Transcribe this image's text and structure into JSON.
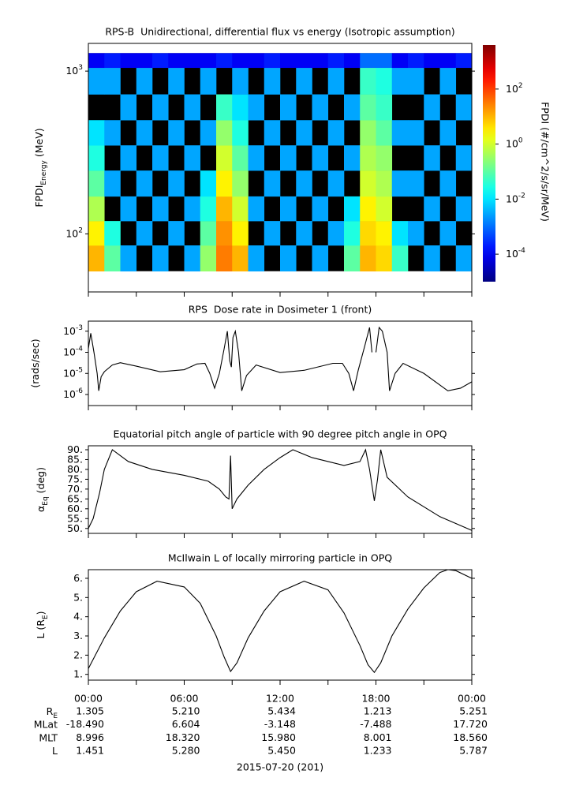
{
  "chart_data": [
    {
      "type": "heatmap",
      "title": "RPS-B  Unidirectional, differential flux vs energy (Isotropic assumption)",
      "ylabel": [
        {
          "text": "FPDI"
        },
        {
          "text": "Energy",
          "sub": true
        },
        {
          "text": " (MeV)"
        }
      ],
      "x_edges": [
        0,
        1,
        2,
        3,
        4,
        5,
        6,
        7,
        8,
        9,
        10,
        11,
        12,
        13,
        14,
        15,
        16,
        17,
        18,
        19,
        20,
        21,
        22,
        23,
        24
      ],
      "y_edges": [
        59,
        85,
        120,
        170,
        245,
        350,
        500,
        720,
        1050,
        1290
      ],
      "z": [
        [
          10,
          0.1,
          0.003,
          null,
          0.003,
          null,
          0.003,
          0.3,
          30,
          10,
          0.003,
          null,
          0.003,
          null,
          0.003,
          null,
          0.1,
          10,
          5,
          0.05,
          null,
          0.003,
          null,
          0.003
        ],
        [
          3,
          0.03,
          null,
          0.003,
          null,
          0.003,
          null,
          0.1,
          20,
          3,
          null,
          0.003,
          null,
          0.003,
          null,
          0.003,
          0.03,
          5,
          3,
          0.01,
          0.003,
          null,
          0.003,
          null
        ],
        [
          0.5,
          null,
          0.003,
          null,
          0.003,
          null,
          0.003,
          0.03,
          10,
          1,
          0.003,
          null,
          0.003,
          null,
          0.003,
          null,
          0.01,
          3,
          1,
          null,
          null,
          0.003,
          null,
          0.003
        ],
        [
          0.1,
          0.003,
          null,
          0.003,
          null,
          0.003,
          null,
          0.01,
          3,
          0.3,
          null,
          0.003,
          null,
          0.003,
          null,
          0.003,
          null,
          1,
          0.5,
          0.003,
          0.003,
          null,
          0.003,
          null
        ],
        [
          0.03,
          null,
          0.003,
          null,
          0.003,
          null,
          0.003,
          null,
          1,
          0.1,
          0.003,
          null,
          0.003,
          null,
          0.003,
          null,
          0.003,
          0.5,
          0.3,
          null,
          null,
          0.003,
          null,
          0.003
        ],
        [
          0.01,
          0.003,
          null,
          0.003,
          null,
          0.003,
          null,
          0.003,
          0.3,
          0.03,
          null,
          0.003,
          null,
          0.003,
          null,
          0.003,
          null,
          0.3,
          0.1,
          0.003,
          0.003,
          null,
          0.003,
          null
        ],
        [
          null,
          null,
          0.003,
          null,
          0.003,
          null,
          0.003,
          null,
          0.05,
          0.01,
          0.003,
          null,
          0.003,
          null,
          0.003,
          null,
          0.003,
          0.1,
          0.05,
          null,
          null,
          0.003,
          null,
          0.003
        ],
        [
          0.003,
          0.003,
          null,
          0.003,
          null,
          0.003,
          null,
          0.003,
          null,
          0.003,
          null,
          0.003,
          null,
          0.003,
          null,
          0.003,
          null,
          0.05,
          0.03,
          0.003,
          0.003,
          null,
          0.003,
          null
        ],
        [
          0.0001,
          0.0002,
          0.0001,
          0.0001,
          0.0002,
          0.0001,
          0.0001,
          0.0001,
          0.0002,
          0.0001,
          0.0001,
          0.0002,
          0.0001,
          0.0001,
          0.0001,
          0.0002,
          0.0001,
          0.001,
          0.001,
          0.0001,
          0.0002,
          0.0001,
          0.0001,
          0.0002
        ]
      ],
      "missing_color": "#000000",
      "xlim": [
        0,
        24
      ],
      "xticks": [
        0,
        3,
        6,
        9,
        12,
        15,
        18,
        21,
        24
      ],
      "ylim": [
        44,
        1480
      ],
      "log_y": true,
      "yticks": [
        {
          "value": 100,
          "label": "10",
          "exponent": "2"
        },
        {
          "value": 1000,
          "label": "10",
          "exponent": "3"
        }
      ],
      "colorbar": {
        "label": "FPDI (#/cm^2/s/sr/MeV)",
        "lim": [
          1e-05,
          4000
        ],
        "log": true,
        "colormap": "jet",
        "ticks": [
          {
            "value": 0.0001,
            "label": "10",
            "exponent": "-4"
          },
          {
            "value": 0.01,
            "label": "10",
            "exponent": "-2"
          },
          {
            "value": 1,
            "label": "10",
            "exponent": "0"
          },
          {
            "value": 100,
            "label": "10",
            "exponent": "2"
          }
        ]
      }
    },
    {
      "type": "line",
      "title": "RPS  Dose rate in Dosimeter 1 (front)",
      "ylabel": [
        {
          "text": "(rads/sec)"
        }
      ],
      "x": [
        0,
        0.15,
        0.35,
        0.55,
        0.65,
        0.8,
        1.0,
        1.5,
        2.0,
        3.0,
        4.5,
        6.0,
        6.8,
        7.3,
        7.6,
        7.9,
        8.2,
        8.5,
        8.7,
        8.85,
        8.95,
        9.05,
        9.2,
        9.4,
        9.6,
        9.9,
        10.5,
        12.0,
        13.5,
        15.3,
        15.9,
        16.3,
        16.6,
        16.9,
        17.3,
        17.6,
        17.75,
        17.9,
        18.0,
        18.2,
        18.4,
        18.7,
        18.85,
        19.2,
        19.7,
        21.0,
        22.5,
        23.3,
        24.0
      ],
      "values": [
        0.00015,
        0.0008,
        0.0001,
        1e-05,
        1.5e-06,
        7e-06,
        1.2e-05,
        2.5e-05,
        3.2e-05,
        2.2e-05,
        1.2e-05,
        1.5e-05,
        2.8e-05,
        3e-05,
        1e-05,
        2e-06,
        1e-05,
        0.00015,
        0.001,
        4e-05,
        2e-05,
        0.0005,
        0.001,
        0.0001,
        1.5e-06,
        8e-06,
        2.5e-05,
        1.1e-05,
        1.4e-05,
        3e-05,
        3e-05,
        1e-05,
        1.5e-06,
        1.5e-05,
        0.0002,
        0.0015,
        0.0001,
        null,
        0.0001,
        0.0015,
        0.001,
        0.0001,
        1.5e-06,
        1e-05,
        3e-05,
        1e-05,
        1.5e-06,
        2e-06,
        4e-06
      ],
      "color": "#000000",
      "xlim": [
        0,
        24
      ],
      "xticks": [
        0,
        3,
        6,
        9,
        12,
        15,
        18,
        21,
        24
      ],
      "ylim": [
        3e-07,
        0.003
      ],
      "log_y": true,
      "yticks": [
        {
          "value": 1e-06,
          "label": "10",
          "exponent": "-6"
        },
        {
          "value": 1e-05,
          "label": "10",
          "exponent": "-5"
        },
        {
          "value": 0.0001,
          "label": "10",
          "exponent": "-4"
        },
        {
          "value": 0.001,
          "label": "10",
          "exponent": "-3"
        }
      ]
    },
    {
      "type": "line",
      "title": "Equatorial pitch angle of particle with 90 degree pitch angle in OPQ",
      "ylabel": [
        {
          "text": "α"
        },
        {
          "text": "Eq",
          "sub": true
        },
        {
          "text": " (deg)"
        }
      ],
      "x": [
        0,
        0.3,
        0.7,
        1.0,
        1.5,
        2.5,
        4,
        6,
        7.5,
        8.2,
        8.6,
        8.8,
        8.9,
        9.0,
        9.3,
        10,
        11,
        12,
        12.8,
        14,
        16,
        17,
        17.35,
        17.6,
        17.9,
        18.1,
        18.3,
        18.7,
        20,
        22,
        24
      ],
      "values": [
        50,
        55,
        68,
        80,
        90,
        84,
        80,
        77,
        74,
        70,
        66,
        65,
        87,
        60,
        65,
        72,
        80,
        86,
        90,
        86,
        82,
        84,
        90,
        80,
        64,
        75,
        90,
        76,
        66,
        56,
        49
      ],
      "color": "#000000",
      "xlim": [
        0,
        24
      ],
      "xticks": [
        0,
        3,
        6,
        9,
        12,
        15,
        18,
        21,
        24
      ],
      "ylim": [
        47.5,
        92
      ],
      "log_y": false,
      "yticks": [
        {
          "value": 50,
          "label": "50."
        },
        {
          "value": 55,
          "label": "55."
        },
        {
          "value": 60,
          "label": "60."
        },
        {
          "value": 65,
          "label": "65."
        },
        {
          "value": 70,
          "label": "70."
        },
        {
          "value": 75,
          "label": "75."
        },
        {
          "value": 80,
          "label": "80."
        },
        {
          "value": 85,
          "label": "85."
        },
        {
          "value": 90,
          "label": "90."
        }
      ]
    },
    {
      "type": "line",
      "title": "McIlwain L of locally mirroring particle in OPQ",
      "ylabel": [
        {
          "text": "L (R"
        },
        {
          "text": "E",
          "sub": true
        },
        {
          "text": ")"
        }
      ],
      "x": [
        0,
        1,
        2,
        3,
        4.3,
        6,
        7,
        8,
        8.5,
        8.9,
        9.3,
        10,
        11,
        12,
        13.5,
        15,
        16,
        17,
        17.5,
        17.9,
        18.3,
        19,
        20,
        21,
        22,
        22.5,
        23,
        24
      ],
      "values": [
        1.3,
        2.9,
        4.3,
        5.3,
        5.85,
        5.55,
        4.7,
        3.0,
        1.9,
        1.15,
        1.6,
        2.9,
        4.3,
        5.3,
        5.85,
        5.4,
        4.2,
        2.5,
        1.5,
        1.1,
        1.6,
        3.0,
        4.4,
        5.5,
        6.3,
        6.45,
        6.4,
        6.0
      ],
      "color": "#000000",
      "xlim": [
        0,
        24
      ],
      "xticks": [
        0,
        3,
        6,
        9,
        12,
        15,
        18,
        21,
        24
      ],
      "ylim": [
        0.7,
        6.45
      ],
      "log_y": false,
      "yticks": [
        {
          "value": 1,
          "label": "1."
        },
        {
          "value": 2,
          "label": "2."
        },
        {
          "value": 3,
          "label": "3."
        },
        {
          "value": 4,
          "label": "4."
        },
        {
          "value": 5,
          "label": "5."
        },
        {
          "value": 6,
          "label": "6."
        }
      ]
    }
  ],
  "ephemeris": {
    "times": [
      {
        "value": 0,
        "label": "00:00"
      },
      {
        "value": 6,
        "label": "06:00"
      },
      {
        "value": 12,
        "label": "12:00"
      },
      {
        "value": 18,
        "label": "18:00"
      },
      {
        "value": 24,
        "label": "00:00"
      }
    ],
    "rows": [
      {
        "label": [
          {
            "text": "R"
          },
          {
            "text": "E",
            "sub": true
          }
        ],
        "values": [
          "1.305",
          "5.210",
          "5.434",
          "1.213",
          "5.251"
        ]
      },
      {
        "label": [
          {
            "text": "MLat"
          }
        ],
        "values": [
          "-18.490",
          "6.604",
          "-3.148",
          "-7.488",
          "17.720"
        ]
      },
      {
        "label": [
          {
            "text": "MLT"
          }
        ],
        "values": [
          "8.996",
          "18.320",
          "15.980",
          "8.001",
          "18.560"
        ]
      },
      {
        "label": [
          {
            "text": "L"
          }
        ],
        "values": [
          "1.451",
          "5.280",
          "5.450",
          "1.233",
          "5.787"
        ]
      }
    ],
    "date": "2015-07-20 (201)"
  }
}
